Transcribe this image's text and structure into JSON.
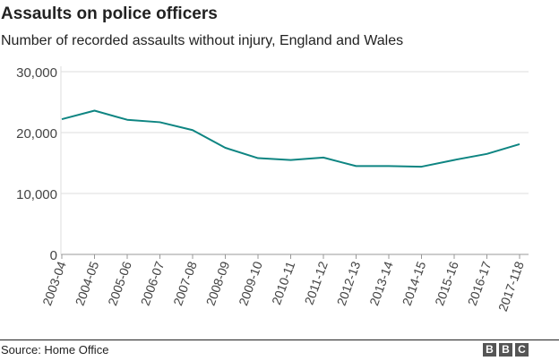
{
  "chart_data": {
    "type": "line",
    "title": "Assaults on police officers",
    "subtitle": "Number of recorded assaults without injury, England and Wales",
    "xlabel": "",
    "ylabel": "",
    "ylim": [
      0,
      30000
    ],
    "yticks": [
      0,
      10000,
      20000,
      30000
    ],
    "ytick_labels": [
      "0",
      "10,000",
      "20,000",
      "30,000"
    ],
    "grid": true,
    "categories": [
      "2003-04",
      "2004-05",
      "2005-06",
      "2006-07",
      "2007-08",
      "2008-09",
      "2009-10",
      "2010-11",
      "2011-12",
      "2012-13",
      "2013-14",
      "2014-15",
      "2015-16",
      "2016-17",
      "2017-118"
    ],
    "series": [
      {
        "name": "Assaults without injury",
        "color": "#0e8582",
        "values": [
          22200,
          23600,
          22100,
          21700,
          20400,
          17500,
          15800,
          15500,
          15900,
          14500,
          14500,
          14400,
          15500,
          16500,
          18100
        ]
      }
    ]
  },
  "footer": {
    "source": "Source: Home Office",
    "logo": [
      "B",
      "B",
      "C"
    ]
  }
}
